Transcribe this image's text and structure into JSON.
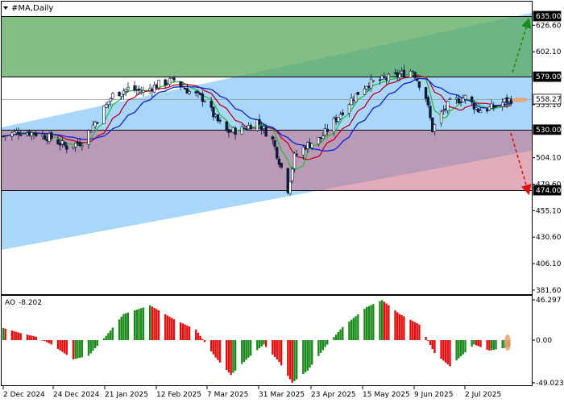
{
  "window": {
    "title": "#MA,Daily",
    "menu_icon": "triangle-down-icon"
  },
  "price_axis": {
    "ticks": [
      "626.60",
      "602.10",
      "553.10",
      "504.10",
      "479.60",
      "455.10",
      "430.60",
      "406.10",
      "381.60"
    ],
    "highlights": [
      {
        "label": "635.00",
        "value": 635.0,
        "bg": "#000000"
      },
      {
        "label": "579.00",
        "value": 579.0,
        "bg": "#000000"
      },
      {
        "label": "558.27",
        "value": 558.27,
        "bg": "#ffffff"
      },
      {
        "label": "530.00",
        "value": 530.0,
        "bg": "#000000"
      },
      {
        "label": "474.00",
        "value": 474.0,
        "bg": "#000000"
      }
    ]
  },
  "ao_axis": {
    "ticks": [
      "46.297",
      "0.00",
      "-49.023"
    ]
  },
  "time_axis": {
    "labels": [
      "2 Dec 2024",
      "24 Dec 2024",
      "21 Jan 2025",
      "12 Feb 2025",
      "7 Mar 2025",
      "31 Mar 2025",
      "23 Apr 2025",
      "15 May 2025",
      "9 Jun 2025",
      "2 Jul 2025"
    ]
  },
  "indicator": {
    "name": "AO",
    "value": "-8.202"
  },
  "colors": {
    "green_zone": "#5aaa5c",
    "red_zone": "#b3778e",
    "channel": "#a9d7f9",
    "ma_fast": "#22c030",
    "ma_mid": "#c00020",
    "ma_slow": "#0b20e0",
    "ao_up": "#1b8a1b",
    "ao_down": "#e01010",
    "arrow_up": "#1a8a1a",
    "arrow_down": "#e01010"
  },
  "chart_data": {
    "type": "candlestick",
    "symbol": "#MA",
    "timeframe": "Daily",
    "x_range": [
      "2024-11-28",
      "2025-07-20"
    ],
    "ylim": [
      381.6,
      640
    ],
    "levels": {
      "target_up": 635.0,
      "resistance": 579.0,
      "current": 558.27,
      "support": 530.0,
      "target_down": 474.0
    },
    "price_path": [
      [
        "2024-11-28",
        524
      ],
      [
        "2024-12-05",
        528
      ],
      [
        "2024-12-12",
        527
      ],
      [
        "2024-12-20",
        522
      ],
      [
        "2024-12-27",
        514
      ],
      [
        "2025-01-03",
        519
      ],
      [
        "2025-01-10",
        540
      ],
      [
        "2025-01-17",
        562
      ],
      [
        "2025-01-24",
        568
      ],
      [
        "2025-01-31",
        565
      ],
      [
        "2025-02-07",
        572
      ],
      [
        "2025-02-14",
        576
      ],
      [
        "2025-02-21",
        565
      ],
      [
        "2025-02-28",
        558
      ],
      [
        "2025-03-05",
        540
      ],
      [
        "2025-03-10",
        528
      ],
      [
        "2025-03-17",
        530
      ],
      [
        "2025-03-24",
        538
      ],
      [
        "2025-03-31",
        520
      ],
      [
        "2025-04-04",
        495
      ],
      [
        "2025-04-07",
        475
      ],
      [
        "2025-04-10",
        505
      ],
      [
        "2025-04-15",
        515
      ],
      [
        "2025-04-22",
        522
      ],
      [
        "2025-04-29",
        540
      ],
      [
        "2025-05-06",
        558
      ],
      [
        "2025-05-13",
        572
      ],
      [
        "2025-05-20",
        576
      ],
      [
        "2025-05-27",
        580
      ],
      [
        "2025-06-03",
        585
      ],
      [
        "2025-06-09",
        560
      ],
      [
        "2025-06-12",
        530
      ],
      [
        "2025-06-16",
        545
      ],
      [
        "2025-06-20",
        555
      ],
      [
        "2025-06-27",
        560
      ],
      [
        "2025-07-03",
        548
      ],
      [
        "2025-07-09",
        550
      ],
      [
        "2025-07-15",
        556
      ],
      [
        "2025-07-18",
        558
      ]
    ],
    "ao": [
      [
        "2024-11-28",
        14
      ],
      [
        "2024-12-06",
        8
      ],
      [
        "2024-12-13",
        4
      ],
      [
        "2024-12-20",
        -5
      ],
      [
        "2024-12-30",
        -22
      ],
      [
        "2025-01-06",
        -18
      ],
      [
        "2025-01-14",
        5
      ],
      [
        "2025-01-22",
        30
      ],
      [
        "2025-02-03",
        40
      ],
      [
        "2025-02-14",
        24
      ],
      [
        "2025-02-24",
        12
      ],
      [
        "2025-03-05",
        -20
      ],
      [
        "2025-03-12",
        -40
      ],
      [
        "2025-03-20",
        -20
      ],
      [
        "2025-03-27",
        -5
      ],
      [
        "2025-04-03",
        -25
      ],
      [
        "2025-04-09",
        -49
      ],
      [
        "2025-04-16",
        -35
      ],
      [
        "2025-04-24",
        -8
      ],
      [
        "2025-05-02",
        15
      ],
      [
        "2025-05-13",
        38
      ],
      [
        "2025-05-20",
        46
      ],
      [
        "2025-05-28",
        30
      ],
      [
        "2025-06-06",
        18
      ],
      [
        "2025-06-13",
        -15
      ],
      [
        "2025-06-20",
        -30
      ],
      [
        "2025-07-01",
        -5
      ],
      [
        "2025-07-08",
        -12
      ],
      [
        "2025-07-17",
        -8
      ]
    ]
  }
}
